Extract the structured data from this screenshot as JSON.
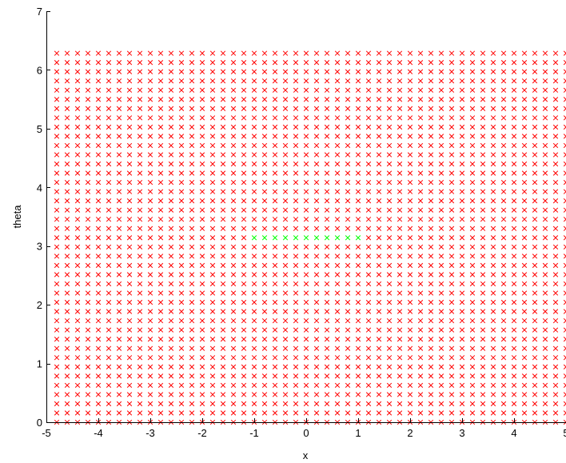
{
  "chart_data": {
    "type": "scatter",
    "title": "",
    "xlabel": "x",
    "ylabel": "theta",
    "xlim": [
      -5,
      5
    ],
    "ylim": [
      0,
      7
    ],
    "xticks": [
      "-5",
      "-4",
      "-3",
      "-2",
      "-1",
      "0",
      "1",
      "2",
      "3",
      "4",
      "5"
    ],
    "yticks": [
      "0",
      "1",
      "2",
      "3",
      "4",
      "5",
      "6",
      "7"
    ],
    "grid": false,
    "marker": "x",
    "colors": {
      "default": "#ff0000",
      "highlight": "#00ff00"
    },
    "x": [
      -4.8,
      -4.6,
      -4.4,
      -4.2,
      -4.0,
      -3.8,
      -3.6,
      -3.4,
      -3.2,
      -3.0,
      -2.8,
      -2.6,
      -2.4,
      -2.2,
      -2.0,
      -1.8,
      -1.6,
      -1.4,
      -1.2,
      -1.0,
      -0.8,
      -0.6,
      -0.4,
      -0.2,
      0.0,
      0.2,
      0.4,
      0.6,
      0.8,
      1.0,
      1.2,
      1.4,
      1.6,
      1.8,
      2.0,
      2.2,
      2.4,
      2.6,
      2.8,
      3.0,
      3.2,
      3.4,
      3.6,
      3.8,
      4.0,
      4.2,
      4.4,
      4.6,
      4.8,
      5.0
    ],
    "theta": [
      0.0,
      0.1571,
      0.3142,
      0.4712,
      0.6283,
      0.7854,
      0.9425,
      1.0996,
      1.2566,
      1.4137,
      1.5708,
      1.7279,
      1.885,
      2.042,
      2.1991,
      2.3562,
      2.5133,
      2.6704,
      2.8274,
      2.9845,
      3.1416,
      3.2987,
      3.4558,
      3.6128,
      3.7699,
      3.927,
      4.0841,
      4.2412,
      4.3982,
      4.5553,
      4.7124,
      4.8695,
      5.0265,
      5.1836,
      5.3407,
      5.4978,
      5.6549,
      5.8119,
      5.969,
      6.1261,
      6.2832
    ],
    "series": [
      {
        "color": "#ff0000",
        "description": "every (x, theta) grid point not listed in the highlighted series"
      },
      {
        "color": "#00ff00",
        "x": [
          -1.0,
          -0.8,
          -0.6,
          -0.4,
          -0.2,
          0.0,
          0.2,
          0.4,
          0.6,
          0.8,
          1.0
        ],
        "y": [
          3.1416,
          3.1416,
          3.1416,
          3.1416,
          3.1416,
          3.1416,
          3.1416,
          3.1416,
          3.1416,
          3.1416,
          3.1416
        ]
      }
    ]
  }
}
